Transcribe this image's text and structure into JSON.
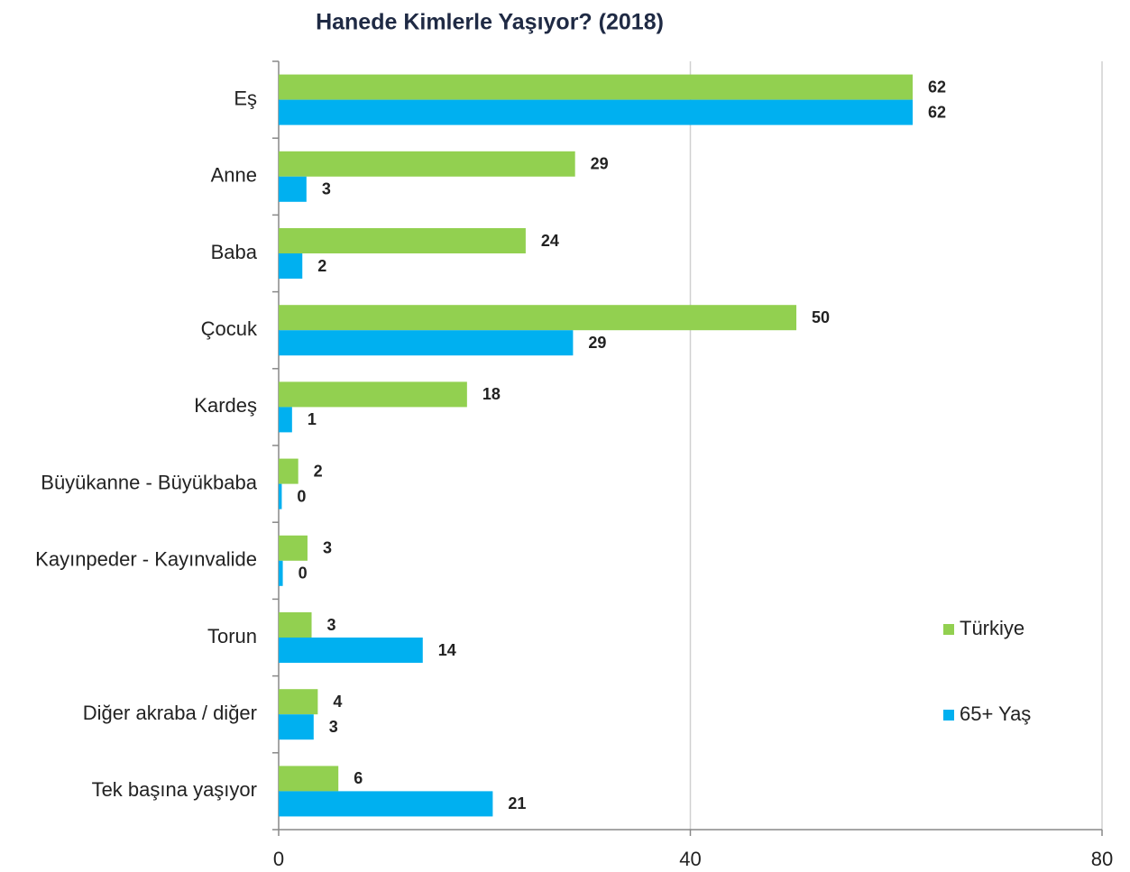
{
  "chart_data": {
    "type": "bar",
    "orientation": "horizontal",
    "title": "Hanede Kimlerle Yaşıyor? (2018)",
    "categories": [
      "Eş",
      "Anne",
      "Baba",
      "Çocuk",
      "Kardeş",
      "Büyükanne - Büyükbaba",
      "Kayınpeder - Kayınvalide",
      "Torun",
      "Diğer akraba / diğer",
      "Tek başına yaşıyor"
    ],
    "series": [
      {
        "name": "Türkiye",
        "color": "#92d050",
        "values": [
          61.6,
          28.8,
          24.0,
          50.3,
          18.3,
          1.9,
          2.8,
          3.2,
          3.8,
          5.8
        ],
        "value_labels": [
          "62",
          "29",
          "24",
          "50",
          "18",
          "2",
          "3",
          "3",
          "4",
          "6"
        ]
      },
      {
        "name": "65+ Yaş",
        "color": "#00b0f0",
        "values": [
          61.6,
          2.7,
          2.3,
          28.6,
          1.3,
          0.3,
          0.4,
          14.0,
          3.4,
          20.8
        ],
        "value_labels": [
          "62",
          "3",
          "2",
          "29",
          "1",
          "0",
          "0",
          "14",
          "3",
          "21"
        ]
      }
    ],
    "xlim": [
      0,
      80
    ],
    "xticks": [
      0,
      40,
      80
    ],
    "grid": true,
    "legend": "right"
  }
}
